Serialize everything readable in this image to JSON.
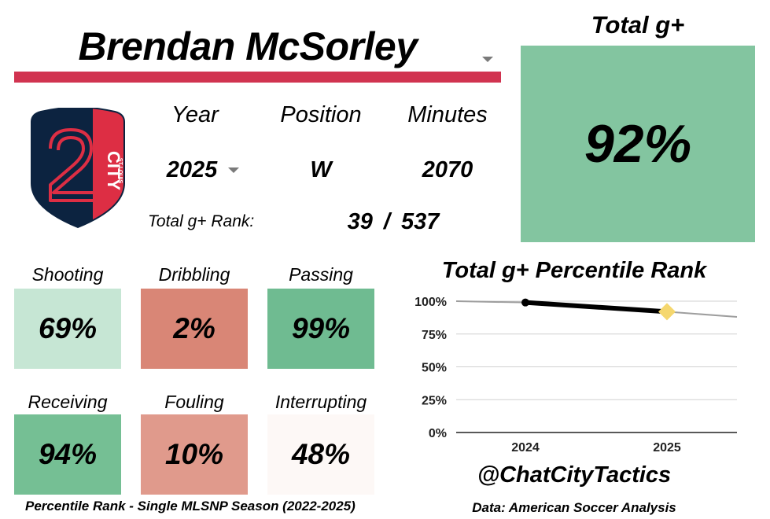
{
  "player": {
    "name": "Brendan McSorley"
  },
  "club": {
    "logo_wordmark": "CITY",
    "logo_small_text": "ST LOUIS",
    "logo_numeral": "2"
  },
  "info": {
    "year_label": "Year",
    "year_value": "2025",
    "position_label": "Position",
    "position_value": "W",
    "minutes_label": "Minutes",
    "minutes_value": "2070",
    "rank_label": "Total g+ Rank:",
    "rank_value": "39  /  537"
  },
  "total": {
    "title": "Total g+",
    "value": "92%",
    "color": "#83c5a0"
  },
  "metrics": [
    {
      "label": "Shooting",
      "value": "69%",
      "color": "#c6e6d4"
    },
    {
      "label": "Dribbling",
      "value": "2%",
      "color": "#d98676"
    },
    {
      "label": "Passing",
      "value": "99%",
      "color": "#6fbb91"
    },
    {
      "label": "Receiving",
      "value": "94%",
      "color": "#75bf94"
    },
    {
      "label": "Fouling",
      "value": "10%",
      "color": "#e09a8c"
    },
    {
      "label": "Interrupting",
      "value": "48%",
      "color": "#fdf8f6"
    }
  ],
  "footnotes": {
    "left": "Percentile Rank - Single MLSNP Season (2022-2025)",
    "right": "Data: American Soccer Analysis"
  },
  "credit": {
    "handle": "@ChatCityTactics"
  },
  "chart_data": {
    "type": "line",
    "title": "Total g+ Percentile Rank",
    "categories": [
      "2024",
      "2025"
    ],
    "series": [
      {
        "values": [
          99,
          92
        ]
      }
    ],
    "highlight": {
      "category": "2025",
      "value": 92,
      "color": "#f5d76e"
    },
    "trend_extension": {
      "to_value": 88
    },
    "ylim": [
      0,
      100
    ],
    "yticks": [
      0,
      25,
      50,
      75,
      100
    ],
    "ytick_labels": [
      "0%",
      "25%",
      "50%",
      "75%",
      "100%"
    ],
    "grid": true,
    "line_color": "#000000",
    "trend_color": "#9e9e9e"
  }
}
